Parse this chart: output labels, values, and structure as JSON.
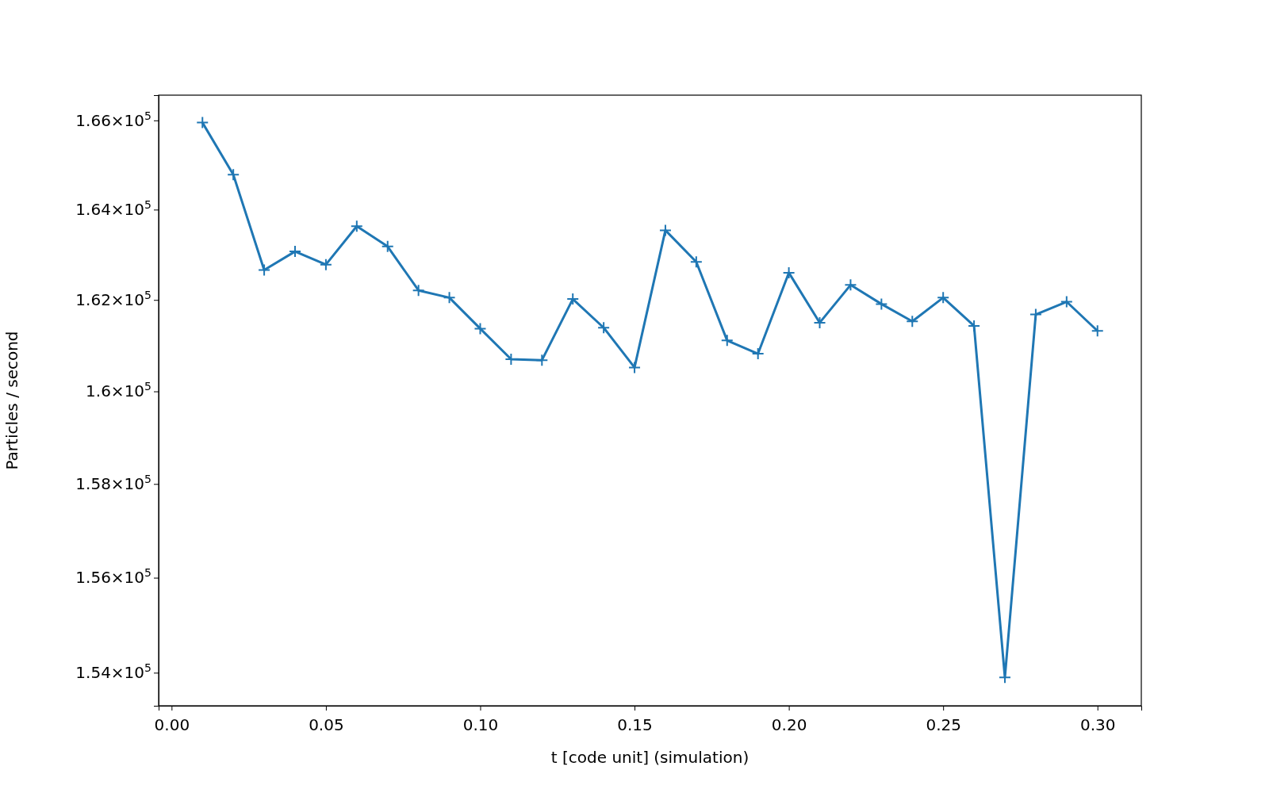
{
  "chart_data": {
    "type": "line",
    "xlabel": "t [code unit] (simulation)",
    "ylabel": "Particles / second",
    "log": true,
    "grid": false,
    "marker": "cross",
    "line_style": "solid",
    "x": [
      0.01,
      0.02,
      0.03,
      0.04,
      0.05,
      0.06,
      0.07,
      0.08,
      0.09,
      0.1,
      0.11,
      0.12,
      0.13,
      0.14,
      0.15,
      0.16,
      0.17,
      0.18,
      0.19,
      0.2,
      0.21,
      0.22,
      0.23,
      0.24,
      0.25,
      0.26,
      0.27,
      0.28,
      0.29,
      0.3
    ],
    "series": [
      {
        "color": "#1f77b4",
        "values": [
          165950,
          164780,
          162660,
          163070,
          162780,
          163630,
          163180,
          162210,
          162050,
          161370,
          160700,
          160680,
          162020,
          161390,
          160520,
          163540,
          162840,
          161110,
          160820,
          162600,
          161500,
          162330,
          161910,
          161530,
          162050,
          161430,
          153900,
          161680,
          161960,
          161320
        ]
      }
    ],
    "xlim": [
      -0.0042,
      0.3142
    ],
    "xticks": [
      {
        "value": 0,
        "label": "0.00"
      },
      {
        "value": 0.05,
        "label": "0.05"
      },
      {
        "value": 0.1,
        "label": "0.10"
      },
      {
        "value": 0.15,
        "label": "0.15"
      },
      {
        "value": 0.2,
        "label": "0.20"
      },
      {
        "value": 0.25,
        "label": "0.25"
      },
      {
        "value": 0.3,
        "label": "0.30"
      }
    ],
    "ylim": [
      153310,
      166570
    ],
    "yticks": [
      {
        "value": 154000,
        "label": "1.54×10$^{5}$"
      },
      {
        "value": 156000,
        "label": "1.56×10$^{5}$"
      },
      {
        "value": 158000,
        "label": "1.58×10$^{5}$"
      },
      {
        "value": 160000,
        "label": "1.6×10$^{5}$"
      },
      {
        "value": 162000,
        "label": "1.62×10$^{5}$"
      },
      {
        "value": 164000,
        "label": "1.64×10$^{5}$"
      },
      {
        "value": 166000,
        "label": "1.66×10$^{5}$"
      }
    ]
  }
}
